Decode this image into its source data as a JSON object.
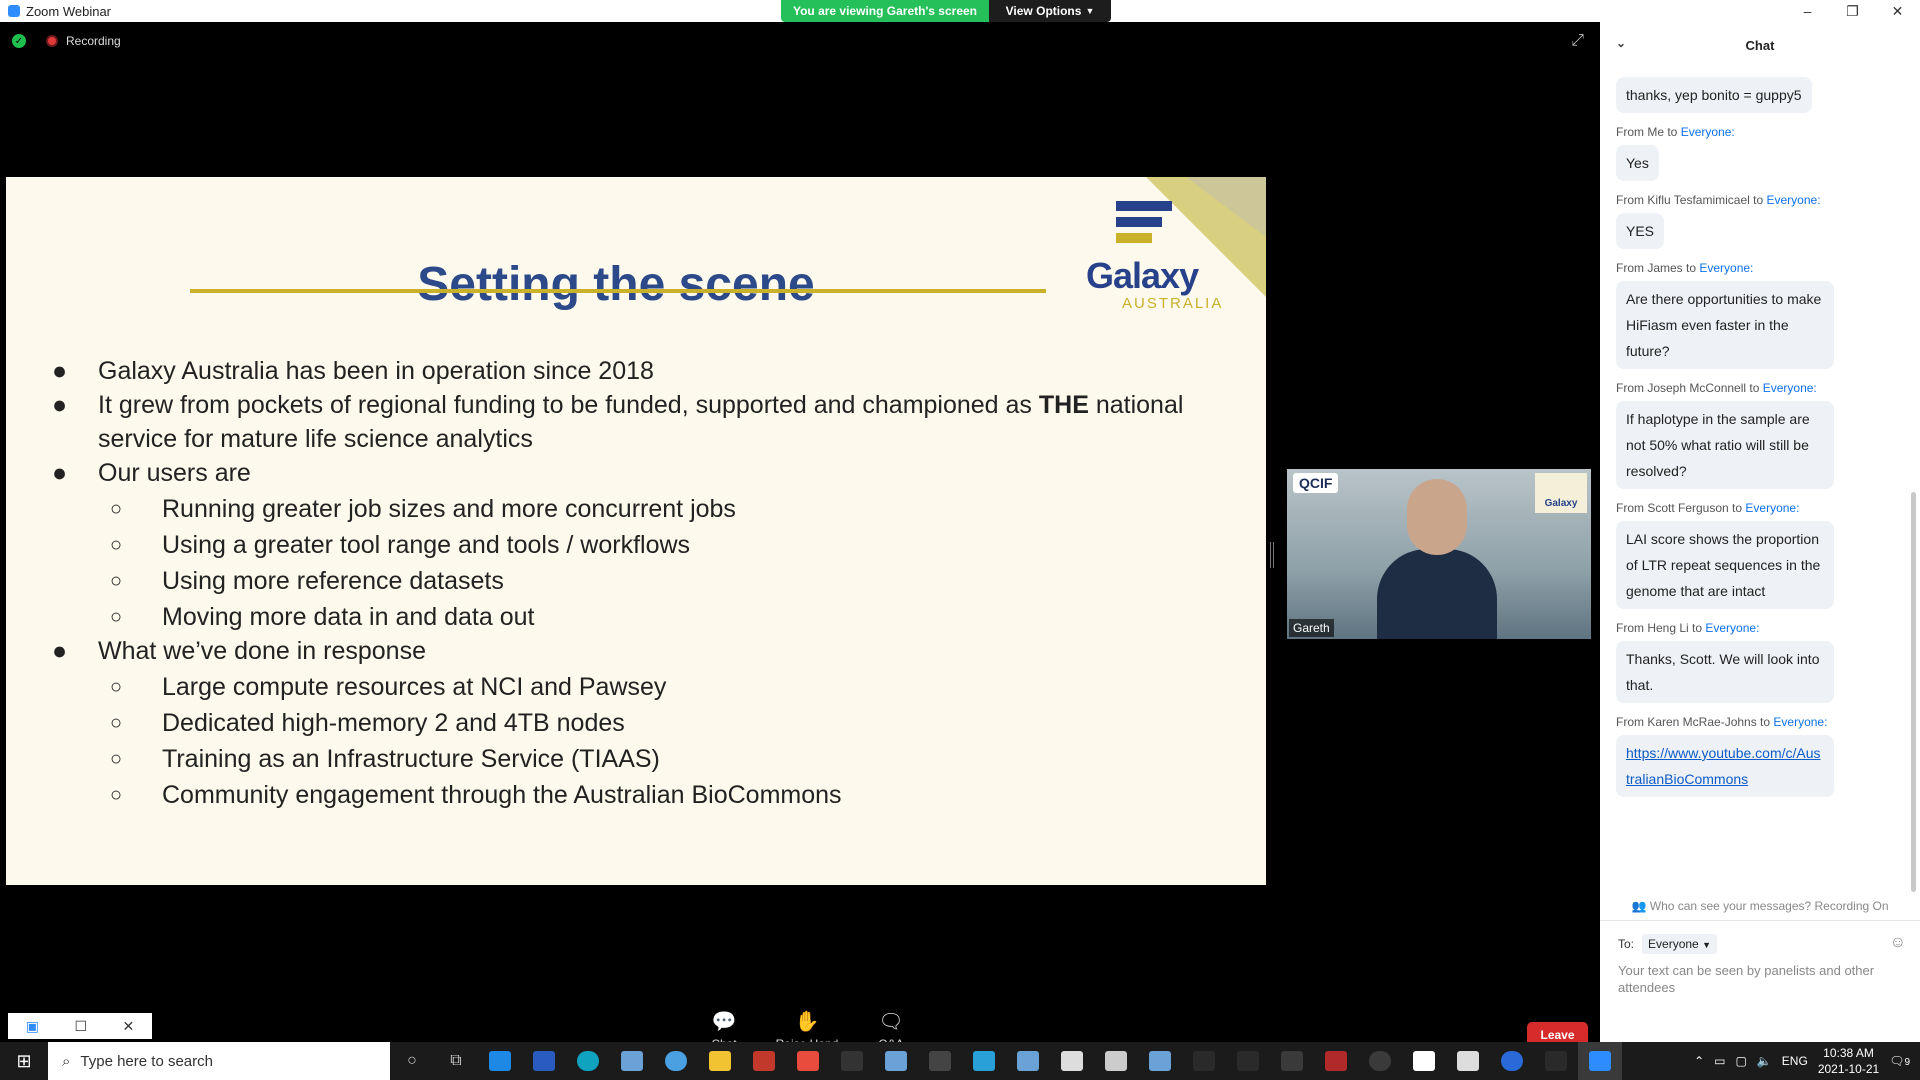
{
  "window": {
    "title": "Zoom Webinar",
    "controls": [
      "–",
      "❐",
      "✕"
    ]
  },
  "share_banner": {
    "viewing_text": "You are viewing Gareth's screen",
    "view_options": "View Options"
  },
  "recording": {
    "label": "Recording"
  },
  "slide": {
    "title": "Setting the scene",
    "logo_text": "Galaxy",
    "logo_sub": "AUSTRALIA",
    "bullets": [
      {
        "level": 1,
        "text": "Galaxy Australia has been in operation since 2018"
      },
      {
        "level": 1,
        "text_before": "It grew from pockets of regional funding to be funded, supported and championed as ",
        "bold": "THE",
        "text_after": " national service for mature life science analytics"
      },
      {
        "level": 1,
        "text": "Our users are"
      },
      {
        "level": 2,
        "text": "Running greater job sizes and more concurrent jobs"
      },
      {
        "level": 2,
        "text": "Using a greater tool range and tools / workflows"
      },
      {
        "level": 2,
        "text": "Using more reference datasets"
      },
      {
        "level": 2,
        "text": "Moving more data in and data out"
      },
      {
        "level": 1,
        "text": "What we’ve done in response"
      },
      {
        "level": 2,
        "text": "Large compute resources at NCI and Pawsey"
      },
      {
        "level": 2,
        "text": "Dedicated high-memory 2 and 4TB nodes"
      },
      {
        "level": 2,
        "text": "Training as an Infrastructure Service (TIAAS)"
      },
      {
        "level": 2,
        "text": "Community engagement through the Australian BioCommons"
      }
    ]
  },
  "video": {
    "name": "Gareth",
    "badge": "QCIF",
    "mini_logo": "Galaxy"
  },
  "toolbar": {
    "chat": "Chat",
    "raise_hand": "Raise Hand",
    "qa": "Q&A",
    "leave": "Leave"
  },
  "chat": {
    "header": "Chat",
    "messages": [
      {
        "from": "",
        "to": "",
        "text": "thanks, yep bonito = guppy5"
      },
      {
        "from": "From Me to ",
        "to": "Everyone:",
        "text": "Yes"
      },
      {
        "from": "From Kiflu Tesfamimicael to ",
        "to": "Everyone:",
        "text": "YES"
      },
      {
        "from": "From James to ",
        "to": "Everyone:",
        "text": "Are there opportunities to make HiFiasm even faster in the future?"
      },
      {
        "from": "From Joseph McConnell to ",
        "to": "Everyone:",
        "text": "If haplotype in the sample are not 50% what ratio will still be resolved?"
      },
      {
        "from": "From Scott Ferguson to ",
        "to": "Everyone:",
        "text": "LAI score shows the proportion of LTR repeat sequences in the genome that are intact"
      },
      {
        "from": "From Heng Li to ",
        "to": "Everyone:",
        "text": "Thanks, Scott. We will look into that."
      },
      {
        "from": "From Karen McRae-Johns to ",
        "to": "Everyone:",
        "text": "https://www.youtube.com/c/AustralianBioCommons"
      }
    ],
    "privacy": "Who can see your messages? Recording On",
    "to_label": "To:",
    "to_value": "Everyone",
    "input_hint": "Your text can be seen by panelists and other attendees"
  },
  "taskbar": {
    "search_placeholder": "Type here to search",
    "lang": "ENG",
    "time": "10:38 AM",
    "date": "2021-10-21",
    "notifications": "9"
  },
  "colors": {
    "accent_green": "#25c05a",
    "leave_red": "#d62b2b",
    "slide_title": "#2c4a8a",
    "gold": "#c9b12a",
    "link_blue": "#0e71eb"
  }
}
